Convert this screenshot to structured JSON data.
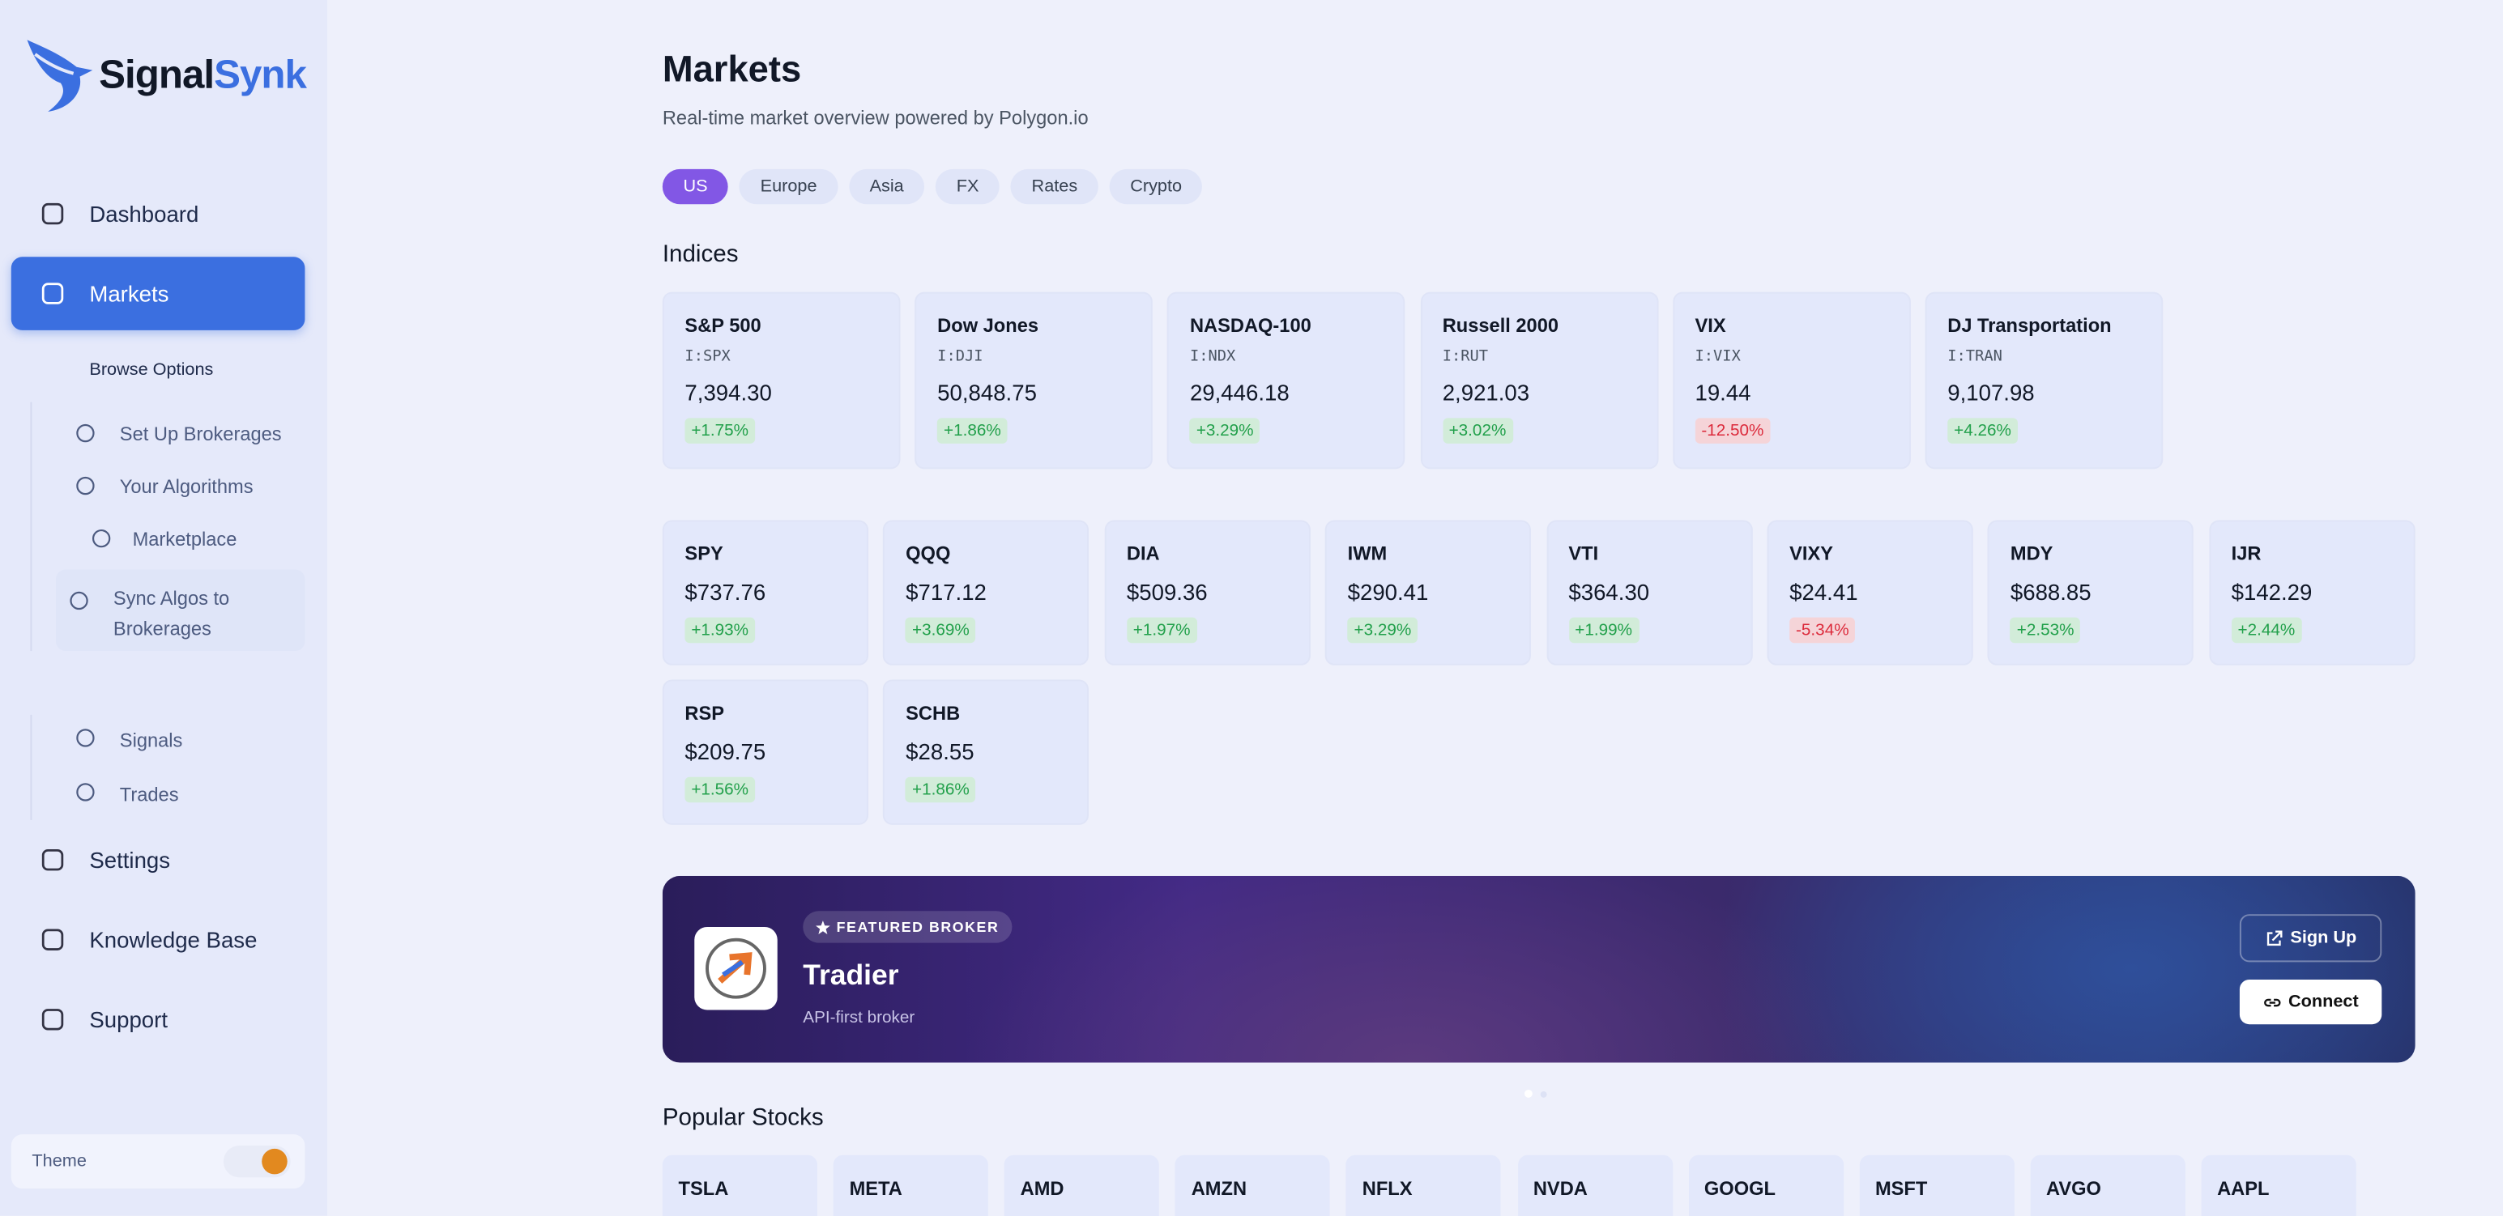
{
  "brand": {
    "name_a": "Signal",
    "name_b": "Synk"
  },
  "sidebar": {
    "nav": [
      "Dashboard",
      "Markets"
    ],
    "browse": "Browse Options",
    "sub": [
      "Set Up Brokerages",
      "Your Algorithms",
      "Marketplace",
      "Sync Algos to Brokerages"
    ],
    "lower_sub": [
      "Signals",
      "Trades"
    ],
    "bottom_nav": [
      "Settings",
      "Knowledge Base",
      "Support"
    ],
    "theme": "Theme"
  },
  "header": {
    "title": "Markets",
    "subtitle": "Real-time market overview powered by Polygon.io"
  },
  "tabs": [
    "US",
    "Europe",
    "Asia",
    "FX",
    "Rates",
    "Crypto"
  ],
  "indices": {
    "title": "Indices",
    "items": [
      {
        "name": "S&P 500",
        "symbol": "I:SPX",
        "price": "7,394.30",
        "change": "+1.75%"
      },
      {
        "name": "Dow Jones",
        "symbol": "I:DJI",
        "price": "50,848.75",
        "change": "+1.86%"
      },
      {
        "name": "NASDAQ-100",
        "symbol": "I:NDX",
        "price": "29,446.18",
        "change": "+3.29%"
      },
      {
        "name": "Russell 2000",
        "symbol": "I:RUT",
        "price": "2,921.03",
        "change": "+3.02%"
      },
      {
        "name": "VIX",
        "symbol": "I:VIX",
        "price": "19.44",
        "change": "-12.50%"
      },
      {
        "name": "DJ Transportation",
        "symbol": "I:TRAN",
        "price": "9,107.98",
        "change": "+4.26%"
      }
    ]
  },
  "etfs": [
    {
      "name": "SPY",
      "price": "$737.76",
      "change": "+1.93%"
    },
    {
      "name": "QQQ",
      "price": "$717.12",
      "change": "+3.69%"
    },
    {
      "name": "DIA",
      "price": "$509.36",
      "change": "+1.97%"
    },
    {
      "name": "IWM",
      "price": "$290.41",
      "change": "+3.29%"
    },
    {
      "name": "VTI",
      "price": "$364.30",
      "change": "+1.99%"
    },
    {
      "name": "VIXY",
      "price": "$24.41",
      "change": "-5.34%"
    },
    {
      "name": "MDY",
      "price": "$688.85",
      "change": "+2.53%"
    },
    {
      "name": "IJR",
      "price": "$142.29",
      "change": "+2.44%"
    },
    {
      "name": "RSP",
      "price": "$209.75",
      "change": "+1.56%"
    },
    {
      "name": "SCHB",
      "price": "$28.55",
      "change": "+1.86%"
    }
  ],
  "featured": {
    "badge": "FEATURED BROKER",
    "name": "Tradier",
    "tagline": "API-first broker",
    "signup": "Sign Up",
    "connect": "Connect"
  },
  "popular": {
    "title": "Popular Stocks",
    "items": [
      "TSLA",
      "META",
      "AMD",
      "AMZN",
      "NFLX",
      "NVDA",
      "GOOGL",
      "MSFT",
      "AVGO",
      "AAPL"
    ]
  }
}
